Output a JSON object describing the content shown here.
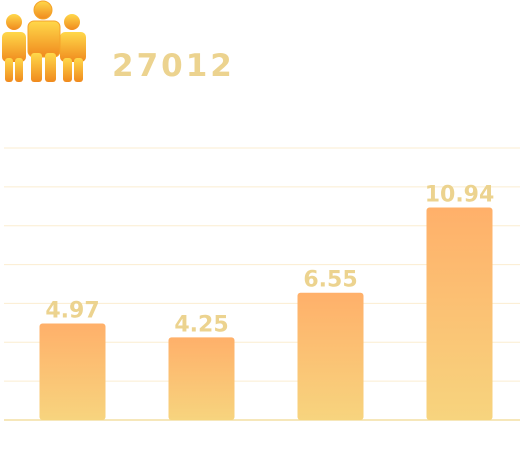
{
  "header": {
    "total": "27012",
    "icon": "people-group-icon"
  },
  "colors": {
    "bar_top": "#ffb06a",
    "bar_bottom": "#f7d47e",
    "label": "#ecd38f",
    "grid": "#fbedd0",
    "axis": "#f3dfa3",
    "icon_light": "#ffd84a",
    "icon_dark": "#f08a1e"
  },
  "chart_data": {
    "type": "bar",
    "categories": [
      "",
      "",
      "",
      ""
    ],
    "values": [
      4.97,
      4.25,
      6.55,
      10.94
    ],
    "value_labels": [
      "4.97",
      "4.25",
      "6.55",
      "10.94"
    ],
    "title": "",
    "xlabel": "",
    "ylabel": "",
    "ylim": [
      0,
      14
    ],
    "grid": true,
    "legend": "none"
  }
}
